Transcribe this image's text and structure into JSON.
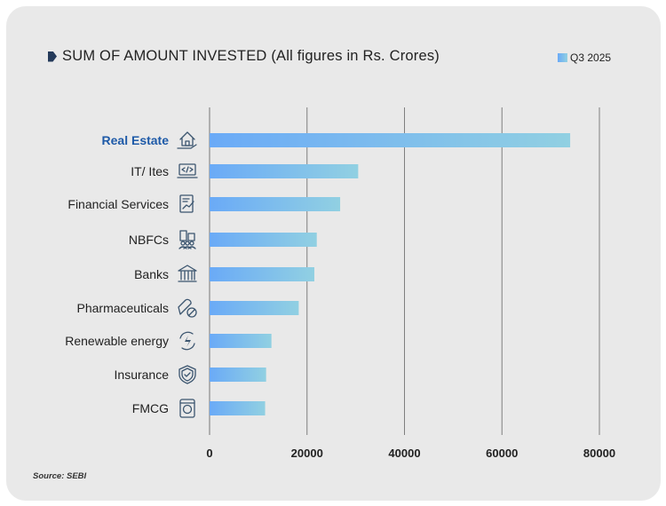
{
  "chart_data": {
    "type": "bar",
    "orientation": "horizontal",
    "title": "SUM OF AMOUNT INVESTED (All figures in Rs. Crores)",
    "legend": [
      "Q3 2025"
    ],
    "legend_position": "top-right",
    "categories": [
      "Real Estate",
      "IT/ Ites",
      "Financial Services",
      "NBFCs",
      "Banks",
      "Pharmaceuticals",
      "Renewable energy",
      "Insurance",
      "FMCG"
    ],
    "highlight_category": "Real Estate",
    "series": [
      {
        "name": "Q3 2025",
        "values": [
          74000,
          30500,
          26800,
          22000,
          21500,
          18300,
          12700,
          11600,
          11400
        ]
      }
    ],
    "icons": [
      "house-hand-icon",
      "laptop-code-icon",
      "report-chart-icon",
      "buildings-people-icon",
      "bank-icon",
      "capsule-icon",
      "renewable-energy-icon",
      "shield-check-icon",
      "fmcg-package-icon"
    ],
    "x_ticks": [
      "0",
      "20000",
      "40000",
      "60000",
      "80000"
    ],
    "xlim": [
      0,
      80000
    ],
    "grid": true,
    "colors": {
      "bar_start": "#6aaaf7",
      "bar_end": "#91d0e2",
      "highlight_text": "#1e5aa8",
      "background": "#e9e9e9"
    }
  },
  "source": "Source: SEBI"
}
